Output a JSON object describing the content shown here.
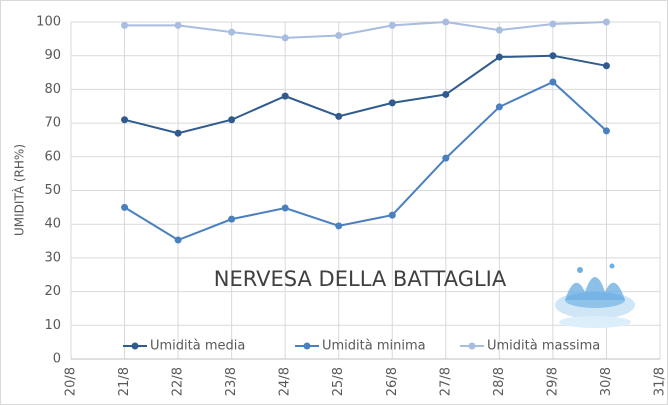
{
  "chart_data": {
    "type": "line",
    "y_label": "UMIDITÀ (RH%)",
    "annotation": "NERVESA DELLA BATTAGLIA",
    "categories": [
      "20/8",
      "21/8",
      "22/8",
      "23/8",
      "24/8",
      "25/8",
      "26/8",
      "27/8",
      "28/8",
      "29/8",
      "30/8",
      "31/8"
    ],
    "series": [
      {
        "name": "Umidità media",
        "color": "#2f5b8e",
        "values": [
          null,
          71,
          67,
          71,
          78,
          72,
          76,
          78.5,
          89.6,
          90,
          87,
          null
        ]
      },
      {
        "name": "Umidità minima",
        "color": "#4a80c0",
        "values": [
          null,
          45,
          35.3,
          41.5,
          44.8,
          39.5,
          42.7,
          59.6,
          74.8,
          82.2,
          67.7,
          null
        ]
      },
      {
        "name": "Umidità massima",
        "color": "#a8bde0",
        "values": [
          null,
          99,
          99,
          97,
          95.3,
          96,
          99,
          100,
          97.6,
          99.4,
          100,
          null
        ]
      }
    ],
    "ylim": [
      0,
      100
    ],
    "yticks": [
      0,
      10,
      20,
      30,
      40,
      50,
      60,
      70,
      80,
      90,
      100
    ],
    "grid": true,
    "legend": "bottom"
  }
}
